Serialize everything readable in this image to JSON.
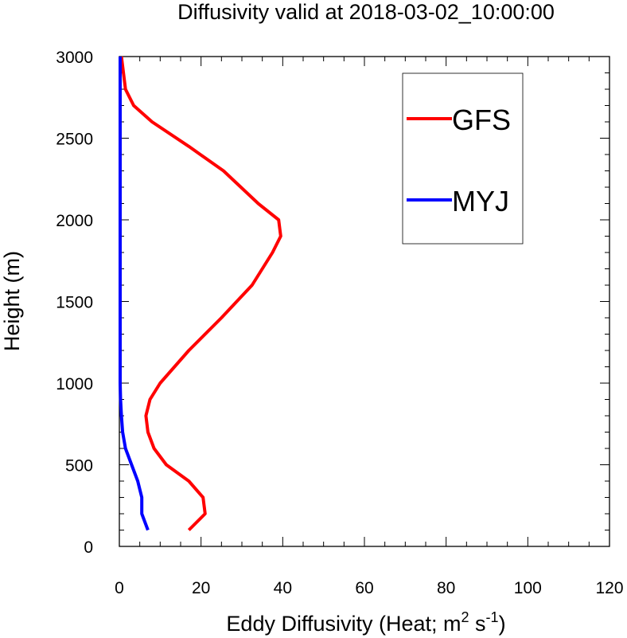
{
  "chart_data": {
    "type": "line",
    "title": "Diffusivity valid at 2018-03-02_10:00:00",
    "xlabel": "Eddy Diffusivity (Heat; m",
    "xlabel_sup1": "2",
    "xlabel_mid": " s",
    "xlabel_sup2": "-1",
    "xlabel_end": ")",
    "ylabel": "Height (m)",
    "xlim": [
      0,
      120
    ],
    "ylim": [
      0,
      3000
    ],
    "xticks": [
      0,
      20,
      40,
      60,
      80,
      100,
      120
    ],
    "yticks": [
      0,
      500,
      1000,
      1500,
      2000,
      2500,
      3000
    ],
    "xtick_labels": [
      "0",
      "20",
      "40",
      "60",
      "80",
      100,
      120
    ],
    "ytick_labels": [
      "0",
      "500",
      "1000",
      "1500",
      "2000",
      "2500",
      "3000"
    ],
    "legend_position": "top-right",
    "series": [
      {
        "name": "GFS",
        "color": "#ff0000",
        "points": [
          [
            17.0,
            100
          ],
          [
            21.0,
            200
          ],
          [
            20.5,
            300
          ],
          [
            17.0,
            400
          ],
          [
            11.5,
            500
          ],
          [
            8.5,
            600
          ],
          [
            7.0,
            700
          ],
          [
            6.5,
            800
          ],
          [
            7.5,
            900
          ],
          [
            10.0,
            1000
          ],
          [
            17.0,
            1200
          ],
          [
            25.0,
            1400
          ],
          [
            32.5,
            1600
          ],
          [
            37.5,
            1800
          ],
          [
            39.5,
            1900
          ],
          [
            39.0,
            2000
          ],
          [
            34.0,
            2100
          ],
          [
            25.5,
            2300
          ],
          [
            17.0,
            2450
          ],
          [
            8.0,
            2600
          ],
          [
            3.5,
            2700
          ],
          [
            1.5,
            2800
          ],
          [
            0.5,
            3000
          ]
        ]
      },
      {
        "name": "MYJ",
        "color": "#0000ff",
        "points": [
          [
            7.0,
            100
          ],
          [
            5.5,
            200
          ],
          [
            5.5,
            300
          ],
          [
            4.5,
            400
          ],
          [
            3.0,
            500
          ],
          [
            1.5,
            600
          ],
          [
            0.8,
            700
          ],
          [
            0.5,
            800
          ],
          [
            0.3,
            900
          ],
          [
            0.2,
            1000
          ],
          [
            0.2,
            1500
          ],
          [
            0.2,
            2000
          ],
          [
            0.2,
            2500
          ],
          [
            0.2,
            3000
          ]
        ]
      }
    ]
  }
}
